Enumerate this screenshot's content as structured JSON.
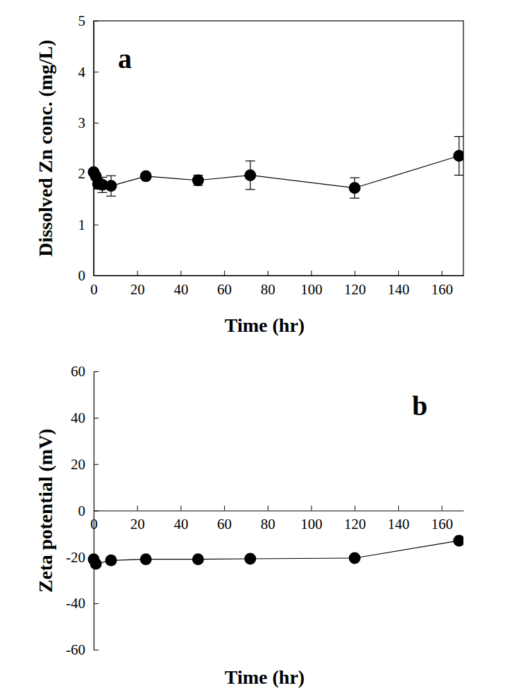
{
  "chart_data": [
    {
      "type": "line",
      "annotations": [
        "a"
      ],
      "x_label": "Time (hr)",
      "y_label": "Dissolved Zn conc. (mg/L)",
      "x": [
        0,
        1,
        2,
        4,
        8,
        24,
        48,
        72,
        120,
        168
      ],
      "series": [
        {
          "color": "#000000",
          "marker": "circle",
          "line_style": "solid",
          "values": [
            2.03,
            1.95,
            1.8,
            1.78,
            1.76,
            1.95,
            1.87,
            1.97,
            1.72,
            2.35
          ],
          "errors": [
            0.05,
            0.05,
            0.1,
            0.15,
            0.2,
            0.05,
            0.1,
            0.28,
            0.2,
            0.38
          ]
        }
      ],
      "xlim": [
        0,
        170
      ],
      "xticks": [
        0,
        20,
        40,
        60,
        80,
        100,
        120,
        140,
        160
      ],
      "ylim": [
        0,
        5
      ],
      "yticks": [
        0,
        1,
        2,
        3,
        4,
        5
      ]
    },
    {
      "type": "line",
      "annotations": [
        "b"
      ],
      "x_label": "Time (hr)",
      "y_label": "Zeta potential (mV)",
      "x": [
        0,
        1,
        8,
        24,
        48,
        72,
        120,
        168
      ],
      "series": [
        {
          "color": "#000000",
          "marker": "circle",
          "line_style": "solid",
          "values": [
            -21,
            -23,
            -21.5,
            -21,
            -21,
            -20.8,
            -20.5,
            -13
          ]
        }
      ],
      "xlim": [
        0,
        170
      ],
      "xticks": [
        0,
        20,
        40,
        60,
        80,
        100,
        120,
        140,
        160
      ],
      "ylim": [
        -60,
        60
      ],
      "yticks": [
        -60,
        -40,
        -20,
        0,
        20,
        40,
        60
      ]
    }
  ]
}
